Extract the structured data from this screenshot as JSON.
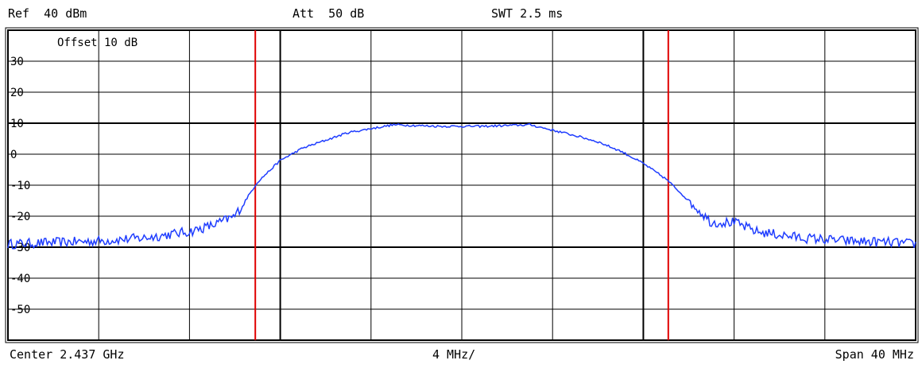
{
  "header": {
    "ref": "Ref  40 dBm",
    "att": "Att  50 dB",
    "swt": "SWT 2.5 ms"
  },
  "offset_label": "Offset  10 dB",
  "footer": {
    "center": "Center 2.437 GHz",
    "division": "4 MHz/",
    "span": "Span 40 MHz"
  },
  "colors": {
    "trace": "#1f3dff",
    "markers": "#e00000",
    "grid": "#000000"
  },
  "chart_data": {
    "type": "line",
    "title": "",
    "xlabel": "",
    "ylabel": "",
    "xlim": [
      2.417,
      2.457
    ],
    "x_unit": "GHz",
    "ylim": [
      -60,
      40
    ],
    "y_unit": "dBm",
    "yticks": [
      30,
      20,
      10,
      0,
      -10,
      -20,
      -30,
      -40,
      -50
    ],
    "ytick_labels": [
      "30",
      "20",
      "10",
      "0",
      "-10",
      "-20",
      "-30",
      "-40",
      "-50"
    ],
    "grid": true,
    "vertical_lines": [
      {
        "x": 2.4279,
        "color": "#e00000"
      },
      {
        "x": 2.4461,
        "color": "#e00000"
      }
    ],
    "series": [
      {
        "x": [
          2.417,
          2.419,
          2.421,
          2.423,
          2.425,
          2.426,
          2.427,
          2.428,
          2.429,
          2.43,
          2.432,
          2.434,
          2.436,
          2.437,
          2.438,
          2.44,
          2.442,
          2.443,
          2.444,
          2.445,
          2.446,
          2.447,
          2.448,
          2.449,
          2.45,
          2.452,
          2.454,
          2.456,
          2.457
        ],
        "y": [
          -29,
          -28.5,
          -28,
          -27,
          -25,
          -23,
          -20,
          -9,
          -2,
          2,
          7,
          9.5,
          9,
          9,
          9,
          9.5,
          6,
          4,
          1,
          -3,
          -8,
          -15,
          -22,
          -22,
          -25,
          -27,
          -28,
          -28.5,
          -29
        ]
      }
    ]
  }
}
